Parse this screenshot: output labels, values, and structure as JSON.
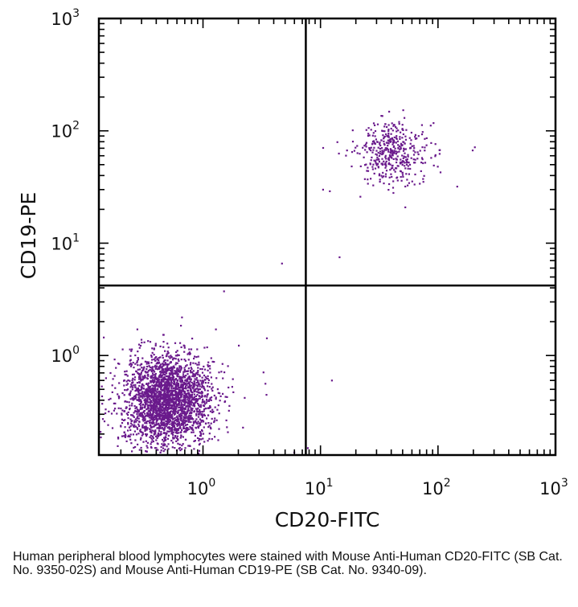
{
  "chart_data": {
    "type": "scatter",
    "plot_kind": "flow cytometry dot plot",
    "xlabel": "CD20-FITC",
    "ylabel": "CD19-PE",
    "xscale": "log",
    "yscale": "log",
    "xlim": [
      0.13,
      1000
    ],
    "ylim": [
      0.13,
      1000
    ],
    "x_tick_labels": [
      {
        "value": 1,
        "base": "10",
        "exp": "0"
      },
      {
        "value": 10,
        "base": "10",
        "exp": "1"
      },
      {
        "value": 100,
        "base": "10",
        "exp": "2"
      },
      {
        "value": 1000,
        "base": "10",
        "exp": "3"
      }
    ],
    "y_tick_labels": [
      {
        "value": 1,
        "base": "10",
        "exp": "0"
      },
      {
        "value": 10,
        "base": "10",
        "exp": "1"
      },
      {
        "value": 100,
        "base": "10",
        "exp": "2"
      },
      {
        "value": 1000,
        "base": "10",
        "exp": "3"
      }
    ],
    "quadrant_gates": {
      "x": 7.5,
      "y": 4.2
    },
    "point_color": "#6a1a8c",
    "series": [
      {
        "name": "CD19-/CD20- population (lower-left)",
        "center": {
          "x": 0.5,
          "y": 0.4
        },
        "spread_log10": {
          "x": 0.17,
          "y": 0.2
        },
        "approx_count": 2600
      },
      {
        "name": "CD19+/CD20+ population (upper-right)",
        "center": {
          "x": 42,
          "y": 65
        },
        "spread_log10": {
          "x": 0.14,
          "y": 0.14
        },
        "approx_count": 420
      },
      {
        "name": "scattered events",
        "points": [
          {
            "x": 4.7,
            "y": 6.6
          },
          {
            "x": 14.5,
            "y": 7.5
          },
          {
            "x": 12.5,
            "y": 0.6
          },
          {
            "x": 10.5,
            "y": 30
          },
          {
            "x": 12,
            "y": 29
          },
          {
            "x": 7.8,
            "y": 0.15
          },
          {
            "x": 7.9,
            "y": 0.13
          }
        ]
      }
    ]
  },
  "caption": "Human peripheral blood lymphocytes were stained with Mouse Anti-Human CD20-FITC (SB Cat. No. 9350-02S) and Mouse Anti-Human CD19-PE (SB Cat. No. 9340-09)."
}
